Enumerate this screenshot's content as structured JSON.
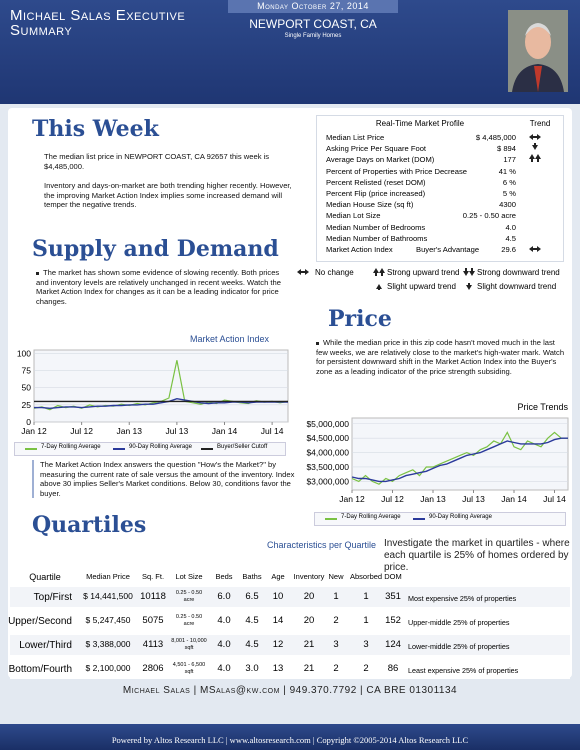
{
  "header": {
    "name": "Michael Salas Executive Summary",
    "date": "Monday October 27, 2014",
    "location": "NEWPORT COAST, CA",
    "subtitle": "Single Family Homes"
  },
  "this_week": {
    "title": "This Week",
    "paragraphs": [
      "The median list price in NEWPORT COAST, CA 92657 this week is $4,485,000.",
      "Inventory and days-on-market are both trending higher recently. However, the improving Market Action Index implies some increased demand will temper the negative trends."
    ]
  },
  "market_profile": {
    "title": "Real-Time Market Profile",
    "trend_header": "Trend",
    "rows": [
      {
        "label": "Median List Price",
        "value": "$ 4,485,000"
      },
      {
        "label": "Asking Price Per Square Foot",
        "value": "$ 894"
      },
      {
        "label": "Average Days on Market (DOM)",
        "value": "177"
      },
      {
        "label": "Percent of Properties with Price Decrease",
        "value": "41 %"
      },
      {
        "label": "Percent Relisted (reset DOM)",
        "value": "6 %"
      },
      {
        "label": "Percent Flip (price increased)",
        "value": "5 %"
      },
      {
        "label": "Median House Size (sq ft)",
        "value": "4300"
      },
      {
        "label": "Median Lot Size",
        "value": "0.25 - 0.50 acre"
      },
      {
        "label": "Median Number of Bedrooms",
        "value": "4.0"
      },
      {
        "label": "Median Number of Bathrooms",
        "value": "4.5"
      },
      {
        "label": "Market Action Index",
        "note": "Buyer's Advantage",
        "value": "29.6"
      }
    ]
  },
  "trend_legend": {
    "no_change": "No change",
    "strong_up": "Strong upward trend",
    "strong_down": "Strong downward trend",
    "slight_up": "Slight upward trend",
    "slight_down": "Slight downward trend"
  },
  "supply_demand": {
    "title": "Supply and Demand",
    "paragraph": "The market has shown some evidence of slowing recently.  Both prices and inventory levels are relatively unchanged in recent weeks. Watch the Market Action Index for changes as it can be a leading indicator for price changes.",
    "note": "The Market Action Index answers the question \"How's the Market?\" by measuring the current rate of sale versus the amount of the inventory.  Index above 30 implies Seller's Market conditions. Below 30, conditions favor the buyer."
  },
  "market_action_chart": {
    "type": "line",
    "title": "Market Action Index",
    "categories": [
      "Jan 12",
      null,
      null,
      null,
      null,
      null,
      "Jul 12",
      null,
      null,
      null,
      null,
      null,
      "Jan 13",
      null,
      null,
      null,
      null,
      null,
      "Jul 13",
      null,
      null,
      null,
      null,
      null,
      "Jan 14",
      null,
      null,
      null,
      null,
      null,
      "Jul 14",
      null,
      null
    ],
    "series": [
      {
        "name": "7-Day Rolling Average",
        "color": "#7ac143",
        "values": [
          20,
          22,
          18,
          24,
          21,
          23,
          20,
          25,
          22,
          24,
          23,
          26,
          24,
          27,
          25,
          28,
          30,
          35,
          90,
          30,
          28,
          26,
          29,
          27,
          32,
          30,
          28,
          27,
          31,
          29,
          30,
          28,
          30
        ]
      },
      {
        "name": "90-Day Rolling Average",
        "color": "#2b3a9b",
        "values": [
          21,
          21,
          20,
          21,
          22,
          22,
          21,
          22,
          23,
          23,
          24,
          24,
          25,
          25,
          26,
          26,
          28,
          30,
          34,
          32,
          30,
          28,
          27,
          28,
          28,
          29,
          29,
          28,
          29,
          29,
          29,
          29,
          29
        ]
      },
      {
        "name": "Buyer/Seller Cutoff",
        "color": "#222222",
        "values": [
          30,
          30,
          30,
          30,
          30,
          30,
          30,
          30,
          30,
          30,
          30,
          30,
          30,
          30,
          30,
          30,
          30,
          30,
          30,
          30,
          30,
          30,
          30,
          30,
          30,
          30,
          30,
          30,
          30,
          30,
          30,
          30,
          30
        ]
      }
    ],
    "ylim": [
      0,
      105
    ],
    "yticks": [
      0,
      25,
      50,
      75,
      100
    ],
    "grid": true
  },
  "price": {
    "title": "Price",
    "paragraph": "While the median price in this zip code hasn't moved much in the last few weeks, we are relatively close to the market's high-water mark. Watch for persistent downward shift in the Market Action Index into the Buyer's zone as a leading indicator of the price strength subsiding."
  },
  "price_chart": {
    "type": "line",
    "title": "Price Trends",
    "categories": [
      "Jan 12",
      null,
      null,
      null,
      null,
      null,
      "Jul 12",
      null,
      null,
      null,
      null,
      null,
      "Jan 13",
      null,
      null,
      null,
      null,
      null,
      "Jul 13",
      null,
      null,
      null,
      null,
      null,
      "Jan 14",
      null,
      null,
      null,
      null,
      null,
      "Jul 14",
      null,
      null
    ],
    "series": [
      {
        "name": "7-Day Rolling Average",
        "color": "#7ac143",
        "values": [
          3100000,
          3000000,
          3200000,
          3000000,
          2900000,
          3100000,
          3000000,
          3200000,
          3300000,
          3400000,
          3200000,
          3500000,
          3500000,
          3600000,
          3700000,
          3800000,
          3900000,
          4000000,
          3900000,
          4100000,
          4200000,
          4400000,
          4300000,
          4700000,
          4200000,
          4100000,
          4400000,
          4300000,
          4200000,
          4500000,
          4700000,
          4500000,
          4500000
        ]
      },
      {
        "name": "90-Day Rolling Average",
        "color": "#2b3a9b",
        "values": [
          3150000,
          3100000,
          3100000,
          3050000,
          3000000,
          3000000,
          3050000,
          3100000,
          3200000,
          3250000,
          3300000,
          3350000,
          3450000,
          3550000,
          3600000,
          3700000,
          3800000,
          3900000,
          3950000,
          4000000,
          4100000,
          4200000,
          4300000,
          4400000,
          4350000,
          4300000,
          4300000,
          4300000,
          4300000,
          4350000,
          4450000,
          4500000,
          4500000
        ]
      }
    ],
    "ylim": [
      2700000,
      5200000
    ],
    "yticks": [
      {
        "value": 3000000,
        "label": "$3,000,000"
      },
      {
        "value": 3500000,
        "label": "$3,500,000"
      },
      {
        "value": 4000000,
        "label": "$4,000,000"
      },
      {
        "value": 4500000,
        "label": "$4,500,000"
      },
      {
        "value": 5000000,
        "label": "$5,000,000"
      }
    ],
    "grid": true
  },
  "quartiles": {
    "title": "Quartiles",
    "heading": "Characteristics per Quartile",
    "description": "Investigate the market in quartiles - where each quartile is 25% of homes ordered by price.",
    "columns": [
      "Quartile",
      "Median Price",
      "Sq. Ft.",
      "Lot Size",
      "Beds",
      "Baths",
      "Age",
      "Inventory",
      "New",
      "Absorbed",
      "DOM"
    ],
    "rows": [
      [
        "Top/First",
        "$ 14,441,500",
        "10118",
        "0.25 - 0.50 acre",
        "6.0",
        "6.5",
        "10",
        "20",
        "1",
        "1",
        "351",
        "Most expensive 25% of properties"
      ],
      [
        "Upper/Second",
        "$ 5,247,450",
        "5075",
        "0.25 - 0.50 acre",
        "4.0",
        "4.5",
        "14",
        "20",
        "2",
        "1",
        "152",
        "Upper-middle 25% of properties"
      ],
      [
        "Lower/Third",
        "$ 3,388,000",
        "4113",
        "8,001 - 10,000 sqft",
        "4.0",
        "4.5",
        "12",
        "21",
        "3",
        "3",
        "124",
        "Lower-middle 25% of properties"
      ],
      [
        "Bottom/Fourth",
        "$ 2,100,000",
        "2806",
        "4,501 - 6,500 sqft",
        "4.0",
        "3.0",
        "13",
        "21",
        "2",
        "2",
        "86",
        "Least expensive 25% of properties"
      ]
    ]
  },
  "footer": {
    "contact": "Michael Salas | MSalas@kw.com | 949.370.7792 | CA BRE 01301134",
    "powered": "Powered by Altos Research LLC | www.altosresearch.com | Copyright ©2005-2014 Altos Research LLC"
  }
}
